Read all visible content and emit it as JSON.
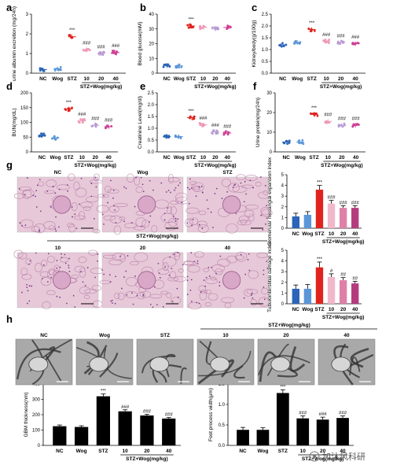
{
  "colors": {
    "NC": "#2b64b8",
    "Wog": "#5b96d8",
    "STZ": "#e0231d",
    "STZ10": "#f2b7cb",
    "STZ20": "#df80a9",
    "STZ40": "#b53b7f",
    "scatterNC": "#2b64b8",
    "scatterWog": "#5b96d8",
    "scatterSTZ": "#e0231d",
    "scatter10": "#f099b6",
    "scatter20": "#b99bd4",
    "scatter40": "#cf3e94",
    "histology_bg": "#e7c8d8",
    "em_bg": "#a9a9a9"
  },
  "panel_letters": [
    "a",
    "b",
    "c",
    "d",
    "e",
    "f",
    "g",
    "h"
  ],
  "groups": [
    "NC",
    "Wog",
    "STZ",
    "10",
    "20",
    "40"
  ],
  "treatment_label": "STZ+Wog(mg/kg)",
  "histology_labels": {
    "top": [
      "NC",
      "Wog",
      "STZ"
    ],
    "bottom_header": "STZ+Wog(mg/kg)",
    "bottom": [
      "10",
      "20",
      "40"
    ]
  },
  "em_labels": {
    "header": "STZ+Wog(mg/kg)",
    "panels": [
      "NC",
      "Wog",
      "STZ",
      "10",
      "20",
      "40"
    ]
  },
  "watermark": "加沐风科研",
  "chart_data": [
    {
      "id": "a",
      "type": "scatter",
      "ylabel": "urine albumin excretion (mg/24h)",
      "yticks": [
        "0",
        "1",
        "2",
        "3"
      ],
      "ylim": [
        0,
        3
      ],
      "values": [
        0.18,
        0.22,
        1.85,
        1.2,
        1.0,
        1.05
      ],
      "sig": [
        "",
        "",
        "***",
        "###",
        "###",
        "###"
      ]
    },
    {
      "id": "b",
      "type": "scatter",
      "ylabel": "Blood glucose(mM)",
      "yticks": [
        "0",
        "10",
        "20",
        "30",
        "40"
      ],
      "ylim": [
        0,
        40
      ],
      "values": [
        5,
        5,
        32,
        31,
        30,
        31
      ],
      "sig": [
        "",
        "",
        "***",
        "",
        "",
        ""
      ]
    },
    {
      "id": "c",
      "type": "scatter",
      "ylabel": "Kidney/body(g/100g)",
      "yticks": [
        "0.0",
        "0.5",
        "1.0",
        "1.5",
        "2.0",
        "2.5"
      ],
      "ylim": [
        0,
        2.5
      ],
      "values": [
        1.2,
        1.3,
        1.85,
        1.35,
        1.3,
        1.25
      ],
      "sig": [
        "",
        "",
        "***",
        "###",
        "###",
        "###"
      ]
    },
    {
      "id": "d",
      "type": "scatter",
      "ylabel": "BUN(mg/dL)",
      "yticks": [
        "0",
        "50",
        "100",
        "150",
        "200"
      ],
      "ylim": [
        0,
        200
      ],
      "values": [
        57,
        47,
        145,
        105,
        90,
        85
      ],
      "sig": [
        "",
        "",
        "***",
        "###",
        "###",
        "###"
      ]
    },
    {
      "id": "e",
      "type": "scatter",
      "ylabel": "Creatinine Level(mg/dl)",
      "yticks": [
        "0.0",
        "0.5",
        "1.0",
        "1.5",
        "2.0",
        "2.5"
      ],
      "ylim": [
        0,
        2.5
      ],
      "values": [
        0.65,
        0.65,
        1.45,
        1.15,
        0.85,
        0.8
      ],
      "sig": [
        "",
        "",
        "***",
        "###",
        "###",
        "###"
      ]
    },
    {
      "id": "f",
      "type": "scatter",
      "ylabel": "Urine protein(mg/24h)",
      "yticks": [
        "0",
        "10",
        "20",
        "30"
      ],
      "ylim": [
        0,
        30
      ],
      "values": [
        5,
        5,
        19,
        15.5,
        13.5,
        13.5
      ],
      "sig": [
        "",
        "",
        "***",
        "###",
        "###",
        "###"
      ]
    },
    {
      "id": "g1",
      "type": "bar",
      "ylabel": "Glomerular mesangial expansion index",
      "yticks": [
        "0",
        "1",
        "2",
        "3",
        "4",
        "5"
      ],
      "ylim": [
        0,
        5
      ],
      "values": [
        1.1,
        1.25,
        3.6,
        2.3,
        1.9,
        1.9
      ],
      "errors": [
        0.3,
        0.3,
        0.4,
        0.3,
        0.2,
        0.2
      ],
      "sig": [
        "",
        "",
        "***",
        "###",
        "###",
        "###"
      ]
    },
    {
      "id": "g2",
      "type": "bar",
      "ylabel": "Tubulointerstitial damage index",
      "yticks": [
        "0",
        "1",
        "2",
        "3",
        "4",
        "5"
      ],
      "ylim": [
        0,
        5
      ],
      "values": [
        1.4,
        1.4,
        3.4,
        2.5,
        2.2,
        1.9
      ],
      "errors": [
        0.35,
        0.4,
        0.5,
        0.3,
        0.25,
        0.2
      ],
      "sig": [
        "",
        "",
        "***",
        "#",
        "##",
        "##"
      ]
    },
    {
      "id": "h1",
      "type": "bar",
      "ylabel": "GBM thickness(nm)",
      "yticks": [
        "0",
        "100",
        "200",
        "300",
        "400"
      ],
      "ylim": [
        0,
        400
      ],
      "values": [
        125,
        120,
        320,
        222,
        195,
        175
      ],
      "errors": [
        8,
        8,
        15,
        10,
        8,
        7
      ],
      "sig": [
        "",
        "",
        "***",
        "###",
        "###",
        "###"
      ]
    },
    {
      "id": "h2",
      "type": "bar",
      "ylabel": "Foot process width(μm)",
      "yticks": [
        "0.0",
        "0.5",
        "1.0",
        "1.5"
      ],
      "ylim": [
        0,
        1.5
      ],
      "values": [
        0.38,
        0.38,
        1.28,
        0.66,
        0.63,
        0.67
      ],
      "errors": [
        0.06,
        0.05,
        0.08,
        0.06,
        0.06,
        0.05
      ],
      "sig": [
        "",
        "",
        "***",
        "###",
        "###",
        "###"
      ]
    }
  ]
}
